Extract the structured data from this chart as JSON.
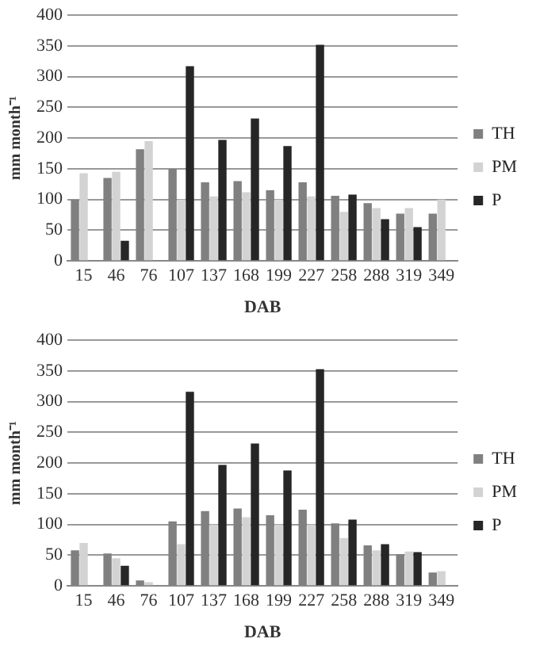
{
  "chart_data": [
    {
      "type": "bar",
      "xlabel": "DAB",
      "ylabel": "mm month⁻¹",
      "categories": [
        "15",
        "46",
        "76",
        "107",
        "137",
        "168",
        "199",
        "227",
        "258",
        "288",
        "319",
        "349"
      ],
      "ylim": [
        0,
        400
      ],
      "yticks": [
        0,
        50,
        100,
        150,
        200,
        250,
        300,
        350,
        400
      ],
      "grid": "y",
      "legend": "right",
      "series": [
        {
          "name": "TH",
          "color": "#808080",
          "values": [
            100,
            135,
            182,
            150,
            128,
            130,
            115,
            128,
            106,
            94,
            77,
            77
          ]
        },
        {
          "name": "PM",
          "color": "#d3d3d3",
          "values": [
            143,
            145,
            195,
            100,
            105,
            112,
            100,
            105,
            80,
            86,
            86,
            100
          ]
        },
        {
          "name": "P",
          "color": "#262626",
          "values": [
            null,
            33,
            null,
            317,
            197,
            232,
            187,
            352,
            108,
            68,
            55,
            null
          ]
        }
      ]
    },
    {
      "type": "bar",
      "xlabel": "DAB",
      "ylabel": "mm month⁻¹",
      "categories": [
        "15",
        "46",
        "76",
        "107",
        "137",
        "168",
        "199",
        "227",
        "258",
        "288",
        "319",
        "349"
      ],
      "ylim": [
        0,
        400
      ],
      "yticks": [
        0,
        50,
        100,
        150,
        200,
        250,
        300,
        350,
        400
      ],
      "grid": "y",
      "legend": "right",
      "series": [
        {
          "name": "TH",
          "color": "#808080",
          "values": [
            58,
            53,
            9,
            105,
            122,
            126,
            115,
            124,
            102,
            66,
            52,
            22
          ]
        },
        {
          "name": "PM",
          "color": "#d3d3d3",
          "values": [
            70,
            45,
            6,
            68,
            100,
            112,
            100,
            100,
            78,
            58,
            56,
            24
          ]
        },
        {
          "name": "P",
          "color": "#262626",
          "values": [
            null,
            33,
            null,
            316,
            197,
            232,
            188,
            353,
            108,
            68,
            55,
            null
          ]
        }
      ]
    }
  ]
}
